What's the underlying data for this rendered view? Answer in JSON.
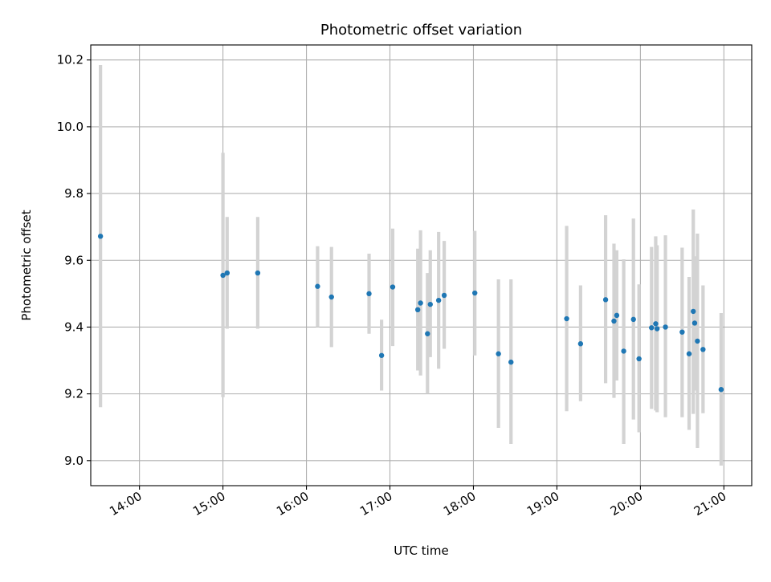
{
  "chart_data": {
    "type": "scatter",
    "title": "Photometric offset variation",
    "xlabel": "UTC time",
    "ylabel": "Photometric offset",
    "xlim": [
      "13:25",
      "21:20"
    ],
    "ylim": [
      8.925,
      10.245
    ],
    "x_ticks": [
      "14:00",
      "15:00",
      "16:00",
      "17:00",
      "18:00",
      "19:00",
      "20:00",
      "21:00"
    ],
    "y_ticks": [
      "9.0",
      "9.2",
      "9.4",
      "9.6",
      "9.8",
      "10.0",
      "10.2"
    ],
    "grid": true,
    "colors": {
      "points": "#1f77b4",
      "errorbars": "#d3d3d3",
      "grid": "#b0b0b0"
    },
    "points": [
      {
        "t": "13:32",
        "y": 9.672,
        "lo": 9.16,
        "hi": 10.185
      },
      {
        "t": "15:00",
        "y": 9.555,
        "lo": 9.19,
        "hi": 9.922
      },
      {
        "t": "15:03",
        "y": 9.562,
        "lo": 9.395,
        "hi": 9.73
      },
      {
        "t": "15:25",
        "y": 9.562,
        "lo": 9.395,
        "hi": 9.73
      },
      {
        "t": "16:08",
        "y": 9.522,
        "lo": 9.4,
        "hi": 9.642
      },
      {
        "t": "16:18",
        "y": 9.49,
        "lo": 9.34,
        "hi": 9.64
      },
      {
        "t": "16:45",
        "y": 9.5,
        "lo": 9.38,
        "hi": 9.62
      },
      {
        "t": "16:54",
        "y": 9.315,
        "lo": 9.21,
        "hi": 9.422
      },
      {
        "t": "17:02",
        "y": 9.52,
        "lo": 9.343,
        "hi": 9.695
      },
      {
        "t": "17:20",
        "y": 9.452,
        "lo": 9.27,
        "hi": 9.635
      },
      {
        "t": "17:22",
        "y": 9.472,
        "lo": 9.255,
        "hi": 9.69
      },
      {
        "t": "17:27",
        "y": 9.38,
        "lo": 9.2,
        "hi": 9.562
      },
      {
        "t": "17:29",
        "y": 9.468,
        "lo": 9.31,
        "hi": 9.63
      },
      {
        "t": "17:35",
        "y": 9.48,
        "lo": 9.275,
        "hi": 9.685
      },
      {
        "t": "17:39",
        "y": 9.495,
        "lo": 9.335,
        "hi": 9.658
      },
      {
        "t": "18:01",
        "y": 9.502,
        "lo": 9.315,
        "hi": 9.688
      },
      {
        "t": "18:18",
        "y": 9.32,
        "lo": 9.098,
        "hi": 9.543
      },
      {
        "t": "18:27",
        "y": 9.295,
        "lo": 9.05,
        "hi": 9.543
      },
      {
        "t": "19:07",
        "y": 9.425,
        "lo": 9.148,
        "hi": 9.703
      },
      {
        "t": "19:17",
        "y": 9.35,
        "lo": 9.178,
        "hi": 9.525
      },
      {
        "t": "19:35",
        "y": 9.482,
        "lo": 9.232,
        "hi": 9.735
      },
      {
        "t": "19:41",
        "y": 9.418,
        "lo": 9.188,
        "hi": 9.65
      },
      {
        "t": "19:43",
        "y": 9.435,
        "lo": 9.24,
        "hi": 9.63
      },
      {
        "t": "19:48",
        "y": 9.328,
        "lo": 9.05,
        "hi": 9.603
      },
      {
        "t": "19:55",
        "y": 9.423,
        "lo": 9.123,
        "hi": 9.725
      },
      {
        "t": "19:59",
        "y": 9.305,
        "lo": 9.085,
        "hi": 9.528
      },
      {
        "t": "20:08",
        "y": 9.398,
        "lo": 9.155,
        "hi": 9.64
      },
      {
        "t": "20:11",
        "y": 9.41,
        "lo": 9.15,
        "hi": 9.672
      },
      {
        "t": "20:12",
        "y": 9.395,
        "lo": 9.145,
        "hi": 9.645
      },
      {
        "t": "20:18",
        "y": 9.4,
        "lo": 9.13,
        "hi": 9.675
      },
      {
        "t": "20:30",
        "y": 9.385,
        "lo": 9.13,
        "hi": 9.638
      },
      {
        "t": "20:35",
        "y": 9.32,
        "lo": 9.092,
        "hi": 9.55
      },
      {
        "t": "20:38",
        "y": 9.447,
        "lo": 9.14,
        "hi": 9.752
      },
      {
        "t": "20:39",
        "y": 9.412,
        "lo": 9.21,
        "hi": 9.612
      },
      {
        "t": "20:41",
        "y": 9.358,
        "lo": 9.038,
        "hi": 9.68
      },
      {
        "t": "20:45",
        "y": 9.333,
        "lo": 9.142,
        "hi": 9.525
      },
      {
        "t": "20:58",
        "y": 9.213,
        "lo": 8.985,
        "hi": 9.442
      }
    ]
  }
}
